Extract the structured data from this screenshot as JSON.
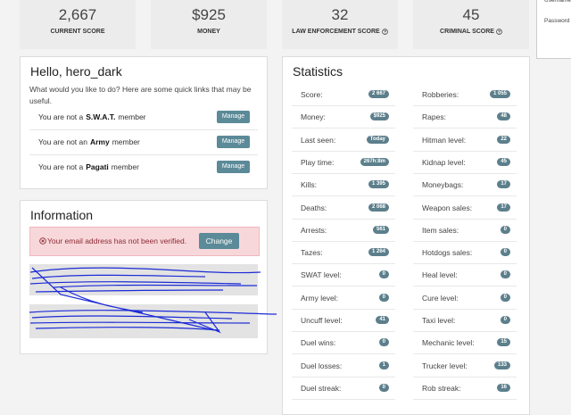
{
  "score_cards": [
    {
      "value": "2,667",
      "label": "CURRENT SCORE"
    },
    {
      "value": "$925",
      "label": "MONEY"
    },
    {
      "value": "32",
      "label": "LAW ENFORCEMENT SCORE"
    },
    {
      "value": "45",
      "label": "CRIMINAL SCORE"
    }
  ],
  "login": {
    "username": "Username",
    "password": "Password"
  },
  "hello": {
    "title": "Hello, hero_dark",
    "intro": "What would you like to do? Here are some quick links that may be useful.",
    "memberships": [
      {
        "prefix": "You are not a",
        "group": "S.W.A.T.",
        "suffix": "member",
        "button": "Manage"
      },
      {
        "prefix": "You are not an",
        "group": "Army",
        "suffix": "member",
        "button": "Manage"
      },
      {
        "prefix": "You are not a",
        "group": "Pagati",
        "suffix": "member",
        "button": "Manage"
      }
    ]
  },
  "information": {
    "title": "Information",
    "alert": "Your email address has not been verified.",
    "button": "Change"
  },
  "statistics": {
    "title": "Statistics",
    "left": [
      {
        "label": "Score:",
        "value": "2 667"
      },
      {
        "label": "Money:",
        "value": "$925"
      },
      {
        "label": "Last seen:",
        "value": "Today"
      },
      {
        "label": "Play time:",
        "value": "267h:8m"
      },
      {
        "label": "Kills:",
        "value": "1 395"
      },
      {
        "label": "Deaths:",
        "value": "2 068"
      },
      {
        "label": "Arrests:",
        "value": "561"
      },
      {
        "label": "Tazes:",
        "value": "1 264"
      },
      {
        "label": "SWAT level:",
        "value": "0"
      },
      {
        "label": "Army level:",
        "value": "0"
      },
      {
        "label": "Uncuff level:",
        "value": "41"
      },
      {
        "label": "Duel wins:",
        "value": "0"
      },
      {
        "label": "Duel losses:",
        "value": "1"
      },
      {
        "label": "Duel streak:",
        "value": "0"
      }
    ],
    "right": [
      {
        "label": "Robberies:",
        "value": "1 055"
      },
      {
        "label": "Rapes:",
        "value": "48"
      },
      {
        "label": "Hitman level:",
        "value": "22"
      },
      {
        "label": "Kidnap level:",
        "value": "45"
      },
      {
        "label": "Moneybags:",
        "value": "17"
      },
      {
        "label": "Weapon sales:",
        "value": "17"
      },
      {
        "label": "Item sales:",
        "value": "0"
      },
      {
        "label": "Hotdogs sales:",
        "value": "0"
      },
      {
        "label": "Heal level:",
        "value": "0"
      },
      {
        "label": "Cure level:",
        "value": "0"
      },
      {
        "label": "Taxi level:",
        "value": "0"
      },
      {
        "label": "Mechanic level:",
        "value": "15"
      },
      {
        "label": "Trucker level:",
        "value": "133"
      },
      {
        "label": "Rob streak:",
        "value": "16"
      }
    ]
  }
}
